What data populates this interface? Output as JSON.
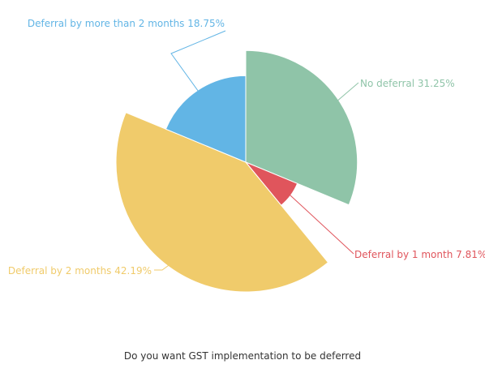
{
  "chart_data": {
    "type": "pie",
    "variant": "rose",
    "title": "Do you want GST implementation to be deferred",
    "slices": [
      {
        "name": "No deferral",
        "value": 31.25,
        "label": "No deferral 31.25%",
        "color": "#8fc4a8"
      },
      {
        "name": "Deferral by 1 month",
        "value": 7.81,
        "label": "Deferral by 1 month 7.81%",
        "color": "#e0555c"
      },
      {
        "name": "Deferral by 2 months",
        "value": 42.19,
        "label": "Deferral by 2 months 42.19%",
        "color": "#f0cb6b"
      },
      {
        "name": "Deferral by more than 2 months",
        "value": 18.75,
        "label": "Deferral by more than 2 months 18.75%",
        "color": "#62b5e5"
      }
    ]
  }
}
